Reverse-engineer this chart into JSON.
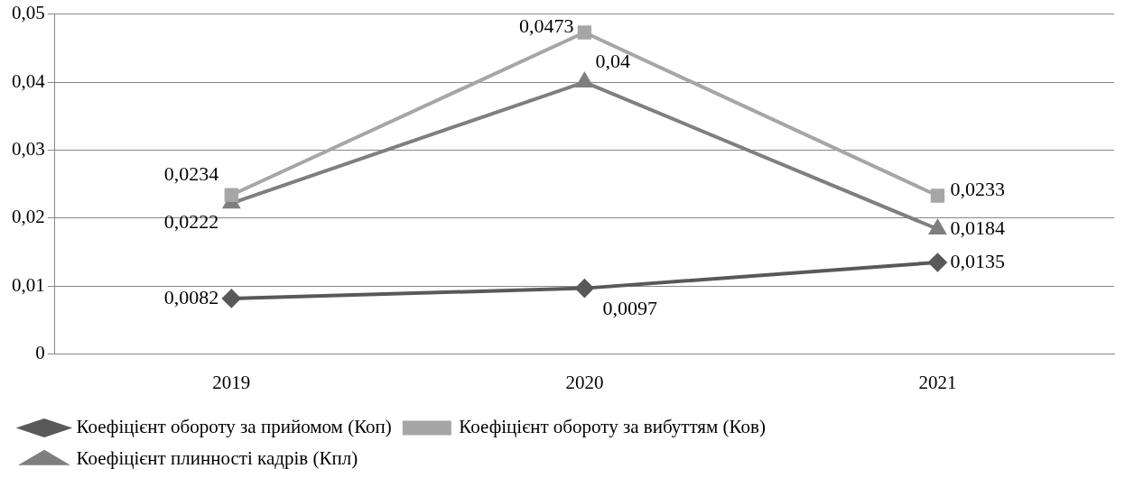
{
  "chart_data": {
    "type": "line",
    "categories": [
      "2019",
      "2020",
      "2021"
    ],
    "series": [
      {
        "name": "Коефіцієнт обороту за прийомом (Коп)",
        "color": "#595959",
        "marker": "diamond",
        "values": [
          0.0082,
          0.0097,
          0.0135
        ],
        "value_labels": [
          "0,0082",
          "0,0097",
          "0,0135"
        ]
      },
      {
        "name": "Коефіцієнт обороту за вибуттям (Ков)",
        "color": "#a6a6a6",
        "marker": "square",
        "values": [
          0.0234,
          0.0473,
          0.0233
        ],
        "value_labels": [
          "0,0234",
          "0,0473",
          "0,0233"
        ]
      },
      {
        "name": "Коефіцієнт плинності кадрів (Кпл)",
        "color": "#7f7f7f",
        "marker": "triangle",
        "values": [
          0.0222,
          0.04,
          0.0184
        ],
        "value_labels": [
          "0,0222",
          "0,04",
          "0,0184"
        ]
      }
    ],
    "ylim": [
      0,
      0.05
    ],
    "yticks": [
      0,
      {
        "value": 0.01,
        "label": "0,01"
      },
      {
        "value": 0.02,
        "label": "0,02"
      },
      {
        "value": 0.03,
        "label": "0,03"
      },
      {
        "value": 0.04,
        "label": "0,04"
      },
      {
        "value": 0.05,
        "label": "0,05"
      }
    ],
    "grid": "y",
    "legend": "bottom",
    "line_style": "solid"
  }
}
